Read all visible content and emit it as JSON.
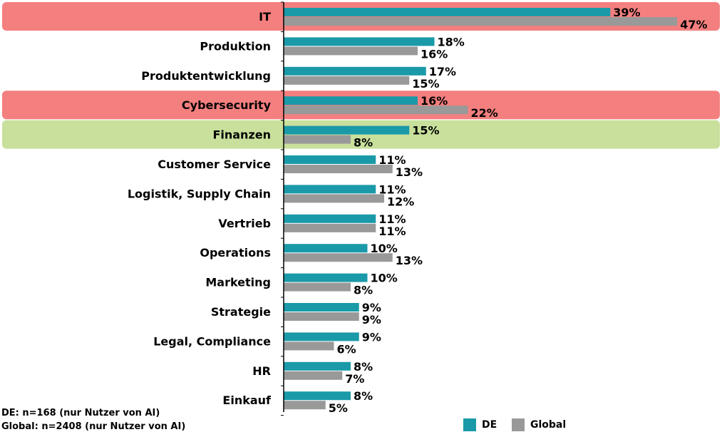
{
  "chart_data": {
    "type": "bar",
    "orientation": "horizontal",
    "categories": [
      "IT",
      "Produktion",
      "Produktentwicklung",
      "Cybersecurity",
      "Finanzen",
      "Customer Service",
      "Logistik, Supply Chain",
      "Vertrieb",
      "Operations",
      "Marketing",
      "Strategie",
      "Legal, Compliance",
      "HR",
      "Einkauf"
    ],
    "series": [
      {
        "name": "DE",
        "color": "#1a9aa8",
        "values": [
          39,
          18,
          17,
          16,
          15,
          11,
          11,
          11,
          10,
          10,
          9,
          9,
          8,
          8
        ]
      },
      {
        "name": "Global",
        "color": "#999999",
        "values": [
          47,
          16,
          15,
          22,
          8,
          13,
          12,
          11,
          13,
          8,
          9,
          6,
          7,
          5
        ]
      }
    ],
    "value_suffix": "%",
    "xlim": [
      0,
      48
    ],
    "highlights": [
      {
        "category": "IT",
        "color": "#f47f7f"
      },
      {
        "category": "Cybersecurity",
        "color": "#f47f7f"
      },
      {
        "category": "Finanzen",
        "color": "#c8e09c"
      }
    ],
    "legend": {
      "position": "bottom-right",
      "entries": [
        "DE",
        "Global"
      ]
    },
    "notes": [
      "DE: n=168 (nur Nutzer von AI)",
      "Global: n=2408 (nur Nutzer von AI)"
    ]
  }
}
